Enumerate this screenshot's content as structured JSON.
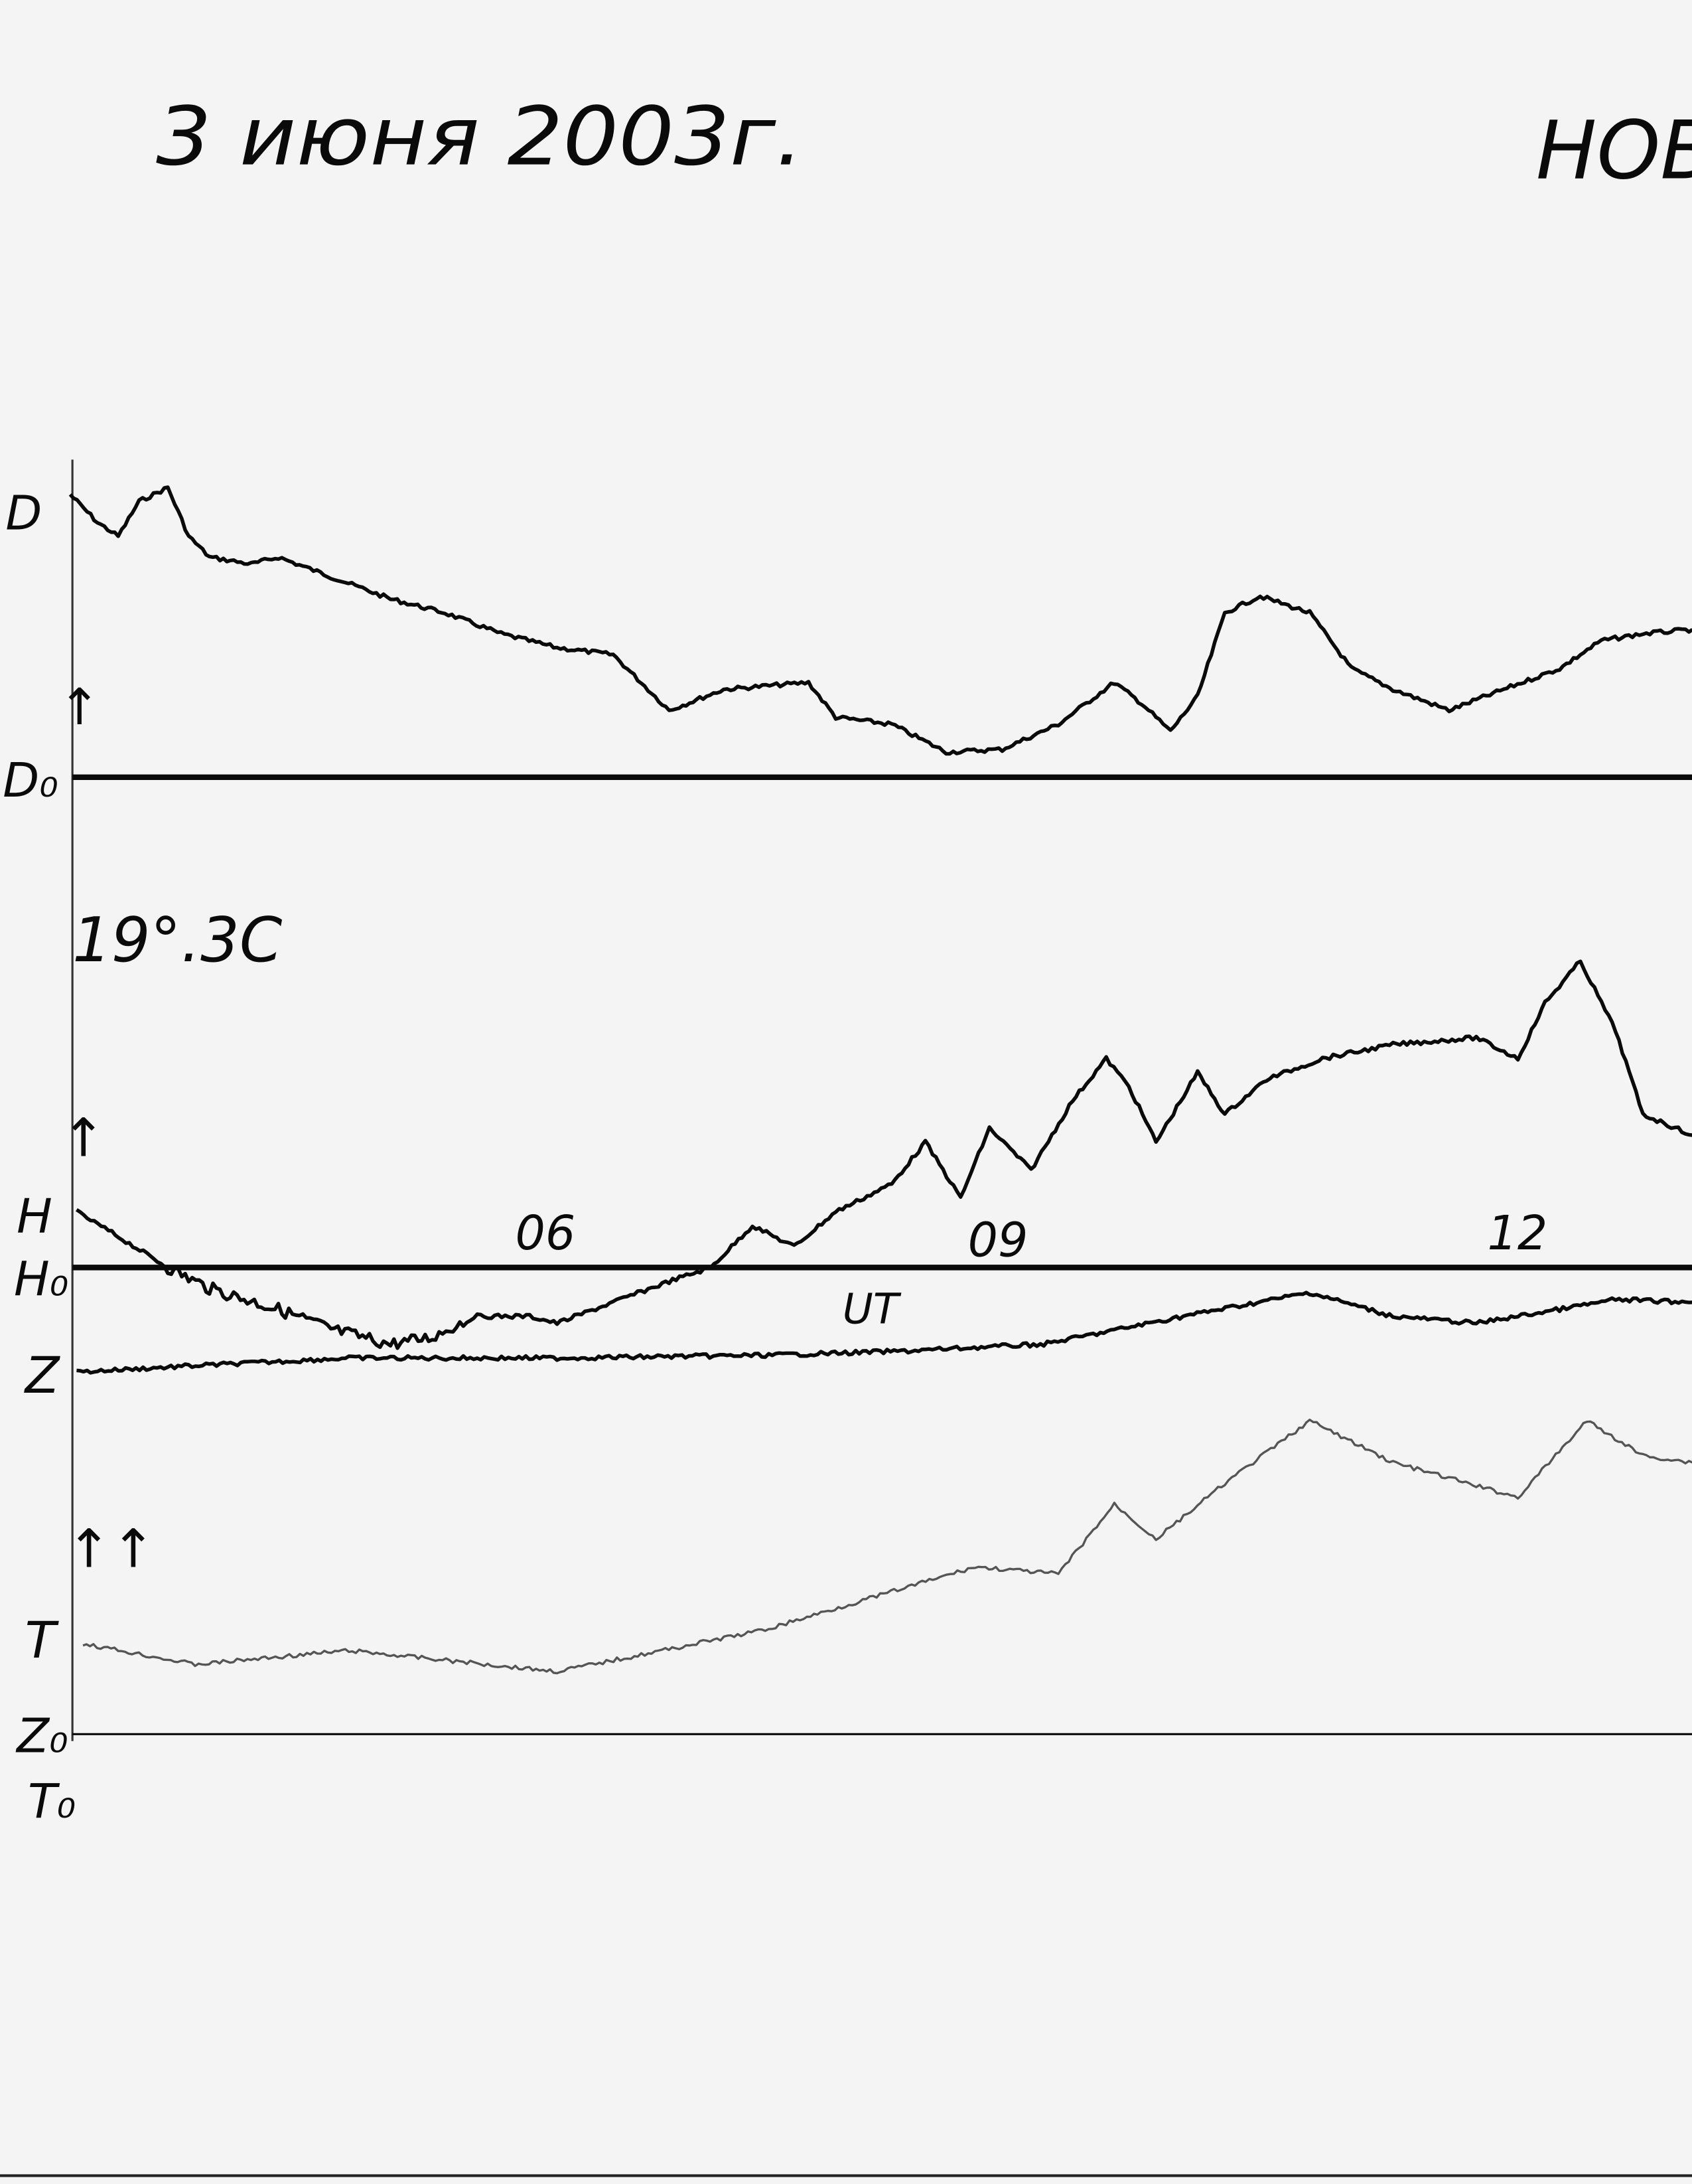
{
  "header": {
    "date": "3 июня 2003г.",
    "station": "НОВ"
  },
  "labels": {
    "d": "D",
    "d0": "D₀",
    "temperature": "19°.3C",
    "h": "H",
    "h0": "H₀",
    "z": "Z",
    "t": "T",
    "z0": "Z₀",
    "t0": "T₀",
    "single_arrow": "↑",
    "double_arrow": "↑↑"
  },
  "chart_data": {
    "type": "line",
    "xlabel": "UT",
    "x_ticks": [
      "06",
      "09",
      "12"
    ],
    "x_tick_values": [
      6,
      9,
      12
    ],
    "xlim": [
      3.1,
      13.2
    ],
    "grid": false,
    "colors": {
      "ink": "#0a0a0a",
      "faint_trace": "#555555",
      "paper": "#f4f4f4"
    },
    "series": [
      {
        "name": "D",
        "baseline": "D₀",
        "x": [
          3.06,
          3.23,
          3.36,
          3.49,
          3.67,
          3.8,
          3.93,
          4.19,
          4.36,
          4.71,
          5.06,
          5.4,
          5.75,
          6.1,
          6.45,
          6.8,
          7.14,
          7.67,
          7.84,
          8.19,
          8.53,
          8.88,
          9.23,
          9.58,
          9.75,
          9.93,
          10.1,
          10.27,
          10.49,
          10.8,
          11.06,
          11.32,
          11.67,
          12.01,
          12.36,
          12.62,
          12.88,
          13.19
        ],
        "y": [
          20.3,
          18.3,
          17.3,
          19.8,
          20.8,
          17.3,
          15.8,
          15.3,
          15.8,
          14.3,
          12.8,
          11.8,
          10.3,
          9.3,
          8.8,
          4.8,
          6.3,
          6.8,
          4.3,
          3.8,
          1.8,
          2.0,
          3.8,
          6.8,
          5.3,
          3.3,
          5.8,
          11.8,
          13.0,
          11.8,
          7.8,
          6.3,
          4.8,
          6.3,
          7.8,
          9.8,
          10.3,
          10.6
        ]
      },
      {
        "name": "H",
        "baseline": "H₀",
        "x": [
          3.1,
          3.32,
          3.67,
          3.93,
          4.36,
          4.71,
          5.06,
          5.32,
          5.58,
          5.93,
          6.1,
          6.45,
          6.8,
          7.06,
          7.32,
          7.58,
          7.84,
          8.19,
          8.4,
          8.62,
          8.8,
          9.06,
          9.32,
          9.53,
          9.67,
          9.84,
          10.1,
          10.27,
          10.53,
          10.88,
          11.32,
          11.84,
          12.1,
          12.27,
          12.49,
          12.71,
          12.88,
          13.19
        ],
        "y": [
          4,
          2.5,
          0,
          -1.5,
          -3,
          -4.5,
          -5.5,
          -5,
          -3.5,
          -3.5,
          -4,
          -2.5,
          -1,
          0,
          3,
          1.5,
          4,
          6,
          9,
          5,
          10,
          7,
          12,
          15,
          13,
          9,
          14,
          11,
          13.5,
          15,
          16,
          16.5,
          15,
          19,
          22,
          17,
          11,
          9.5
        ]
      },
      {
        "name": "Z",
        "baseline": "Z₀",
        "x": [
          3.1,
          3.93,
          4.8,
          6.1,
          7.4,
          8.27,
          9.14,
          9.58,
          10.01,
          10.8,
          11.32,
          11.84,
          12.36,
          12.71,
          13.19
        ],
        "y": [
          26,
          26.5,
          27,
          27,
          27.2,
          27.5,
          28,
          29,
          30,
          31.7,
          30,
          29.5,
          30.5,
          31.2,
          31
        ]
      },
      {
        "name": "T",
        "baseline": "T₀",
        "x": [
          3.14,
          3.84,
          4.8,
          6.1,
          6.54,
          7.4,
          8.27,
          8.71,
          9.23,
          9.58,
          9.84,
          10.27,
          10.8,
          11.32,
          12.1,
          12.53,
          12.88,
          13.19
        ],
        "y": [
          6.5,
          5,
          6,
          4.5,
          5.5,
          7.5,
          10.5,
          12,
          11.5,
          16.5,
          14,
          18,
          22.5,
          19.5,
          17,
          22.5,
          20,
          19.5
        ]
      }
    ]
  }
}
